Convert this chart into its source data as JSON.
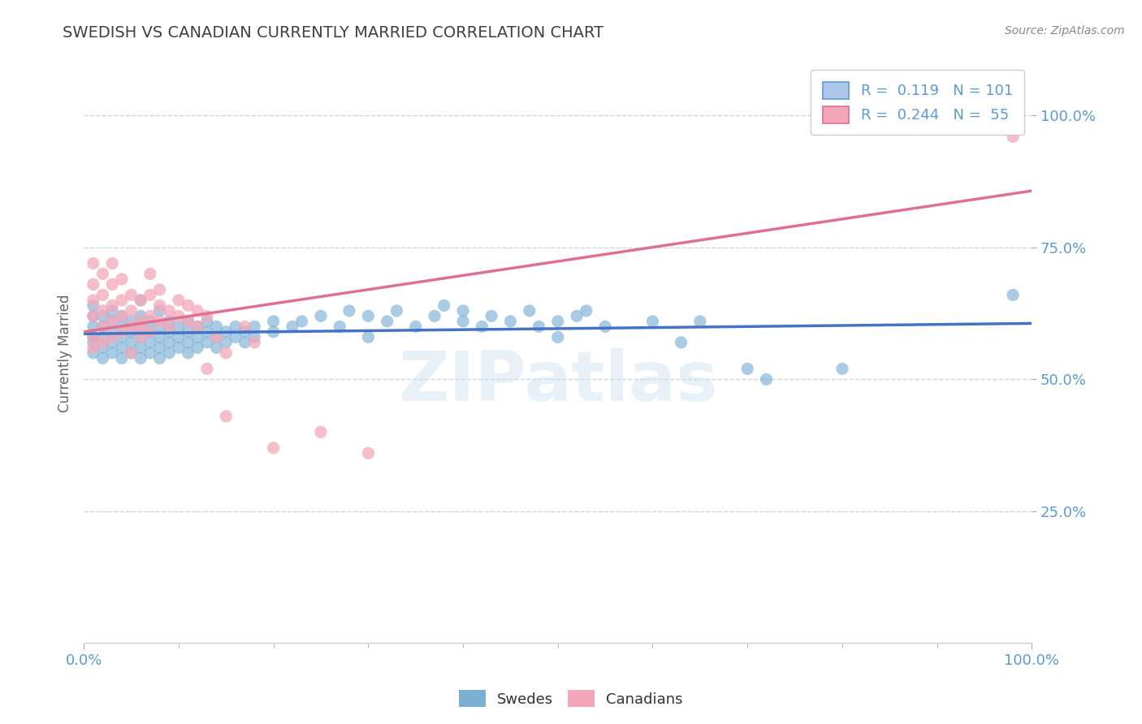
{
  "title": "SWEDISH VS CANADIAN CURRENTLY MARRIED CORRELATION CHART",
  "source_text": "Source: ZipAtlas.com",
  "ylabel": "Currently Married",
  "watermark": "ZIPatlas",
  "xlim": [
    0.0,
    1.0
  ],
  "ylim": [
    0.0,
    1.1
  ],
  "y_tick_positions": [
    0.25,
    0.5,
    0.75,
    1.0
  ],
  "y_tick_labels": [
    "25.0%",
    "50.0%",
    "75.0%",
    "100.0%"
  ],
  "legend_entries": [
    {
      "label": "R =  0.119   N = 101",
      "color": "#aec6e8",
      "border": "#5b9bd5"
    },
    {
      "label": "R =  0.244   N =  55",
      "color": "#f4a7b9",
      "border": "#e07090"
    }
  ],
  "swede_color": "#7bafd4",
  "canadian_color": "#f4a7b9",
  "regression_swede_color": "#4472c4",
  "regression_canadian_color": "#e07090",
  "background_color": "#ffffff",
  "grid_color": "#c8d8ea",
  "title_color": "#404040",
  "title_fontsize": 14,
  "axis_tick_color": "#5b9bd5",
  "swedes_data": [
    [
      0.01,
      0.55
    ],
    [
      0.01,
      0.57
    ],
    [
      0.01,
      0.58
    ],
    [
      0.01,
      0.6
    ],
    [
      0.01,
      0.62
    ],
    [
      0.01,
      0.64
    ],
    [
      0.02,
      0.54
    ],
    [
      0.02,
      0.56
    ],
    [
      0.02,
      0.58
    ],
    [
      0.02,
      0.6
    ],
    [
      0.02,
      0.62
    ],
    [
      0.03,
      0.55
    ],
    [
      0.03,
      0.57
    ],
    [
      0.03,
      0.59
    ],
    [
      0.03,
      0.61
    ],
    [
      0.03,
      0.63
    ],
    [
      0.04,
      0.54
    ],
    [
      0.04,
      0.56
    ],
    [
      0.04,
      0.58
    ],
    [
      0.04,
      0.6
    ],
    [
      0.04,
      0.62
    ],
    [
      0.05,
      0.55
    ],
    [
      0.05,
      0.57
    ],
    [
      0.05,
      0.59
    ],
    [
      0.05,
      0.61
    ],
    [
      0.06,
      0.54
    ],
    [
      0.06,
      0.56
    ],
    [
      0.06,
      0.58
    ],
    [
      0.06,
      0.6
    ],
    [
      0.06,
      0.62
    ],
    [
      0.06,
      0.65
    ],
    [
      0.07,
      0.55
    ],
    [
      0.07,
      0.57
    ],
    [
      0.07,
      0.59
    ],
    [
      0.07,
      0.61
    ],
    [
      0.08,
      0.54
    ],
    [
      0.08,
      0.56
    ],
    [
      0.08,
      0.58
    ],
    [
      0.08,
      0.6
    ],
    [
      0.08,
      0.63
    ],
    [
      0.09,
      0.55
    ],
    [
      0.09,
      0.57
    ],
    [
      0.09,
      0.59
    ],
    [
      0.09,
      0.61
    ],
    [
      0.1,
      0.56
    ],
    [
      0.1,
      0.58
    ],
    [
      0.1,
      0.6
    ],
    [
      0.11,
      0.55
    ],
    [
      0.11,
      0.57
    ],
    [
      0.11,
      0.59
    ],
    [
      0.11,
      0.61
    ],
    [
      0.12,
      0.56
    ],
    [
      0.12,
      0.58
    ],
    [
      0.12,
      0.6
    ],
    [
      0.13,
      0.57
    ],
    [
      0.13,
      0.59
    ],
    [
      0.13,
      0.61
    ],
    [
      0.14,
      0.56
    ],
    [
      0.14,
      0.58
    ],
    [
      0.14,
      0.6
    ],
    [
      0.15,
      0.57
    ],
    [
      0.15,
      0.59
    ],
    [
      0.16,
      0.58
    ],
    [
      0.16,
      0.6
    ],
    [
      0.17,
      0.57
    ],
    [
      0.17,
      0.59
    ],
    [
      0.18,
      0.58
    ],
    [
      0.18,
      0.6
    ],
    [
      0.2,
      0.59
    ],
    [
      0.2,
      0.61
    ],
    [
      0.22,
      0.6
    ],
    [
      0.23,
      0.61
    ],
    [
      0.25,
      0.62
    ],
    [
      0.27,
      0.6
    ],
    [
      0.28,
      0.63
    ],
    [
      0.3,
      0.58
    ],
    [
      0.3,
      0.62
    ],
    [
      0.32,
      0.61
    ],
    [
      0.33,
      0.63
    ],
    [
      0.35,
      0.6
    ],
    [
      0.37,
      0.62
    ],
    [
      0.38,
      0.64
    ],
    [
      0.4,
      0.61
    ],
    [
      0.4,
      0.63
    ],
    [
      0.42,
      0.6
    ],
    [
      0.43,
      0.62
    ],
    [
      0.45,
      0.61
    ],
    [
      0.47,
      0.63
    ],
    [
      0.48,
      0.6
    ],
    [
      0.5,
      0.61
    ],
    [
      0.5,
      0.58
    ],
    [
      0.52,
      0.62
    ],
    [
      0.53,
      0.63
    ],
    [
      0.55,
      0.6
    ],
    [
      0.6,
      0.61
    ],
    [
      0.63,
      0.57
    ],
    [
      0.65,
      0.61
    ],
    [
      0.7,
      0.52
    ],
    [
      0.72,
      0.5
    ],
    [
      0.8,
      0.52
    ],
    [
      0.98,
      0.66
    ]
  ],
  "canadians_data": [
    [
      0.01,
      0.56
    ],
    [
      0.01,
      0.58
    ],
    [
      0.01,
      0.62
    ],
    [
      0.01,
      0.65
    ],
    [
      0.01,
      0.68
    ],
    [
      0.01,
      0.72
    ],
    [
      0.02,
      0.57
    ],
    [
      0.02,
      0.6
    ],
    [
      0.02,
      0.63
    ],
    [
      0.02,
      0.66
    ],
    [
      0.02,
      0.7
    ],
    [
      0.03,
      0.58
    ],
    [
      0.03,
      0.61
    ],
    [
      0.03,
      0.64
    ],
    [
      0.03,
      0.68
    ],
    [
      0.03,
      0.72
    ],
    [
      0.04,
      0.59
    ],
    [
      0.04,
      0.62
    ],
    [
      0.04,
      0.65
    ],
    [
      0.04,
      0.69
    ],
    [
      0.05,
      0.6
    ],
    [
      0.05,
      0.63
    ],
    [
      0.05,
      0.66
    ],
    [
      0.05,
      0.55
    ],
    [
      0.06,
      0.58
    ],
    [
      0.06,
      0.61
    ],
    [
      0.06,
      0.65
    ],
    [
      0.06,
      0.6
    ],
    [
      0.07,
      0.59
    ],
    [
      0.07,
      0.62
    ],
    [
      0.07,
      0.66
    ],
    [
      0.07,
      0.7
    ],
    [
      0.08,
      0.61
    ],
    [
      0.08,
      0.64
    ],
    [
      0.08,
      0.67
    ],
    [
      0.09,
      0.6
    ],
    [
      0.09,
      0.63
    ],
    [
      0.1,
      0.62
    ],
    [
      0.1,
      0.65
    ],
    [
      0.11,
      0.61
    ],
    [
      0.11,
      0.64
    ],
    [
      0.12,
      0.6
    ],
    [
      0.12,
      0.63
    ],
    [
      0.13,
      0.62
    ],
    [
      0.13,
      0.52
    ],
    [
      0.14,
      0.58
    ],
    [
      0.15,
      0.55
    ],
    [
      0.15,
      0.43
    ],
    [
      0.17,
      0.6
    ],
    [
      0.18,
      0.57
    ],
    [
      0.2,
      0.37
    ],
    [
      0.25,
      0.4
    ],
    [
      0.3,
      0.36
    ],
    [
      0.97,
      1.0
    ],
    [
      0.98,
      0.96
    ]
  ]
}
